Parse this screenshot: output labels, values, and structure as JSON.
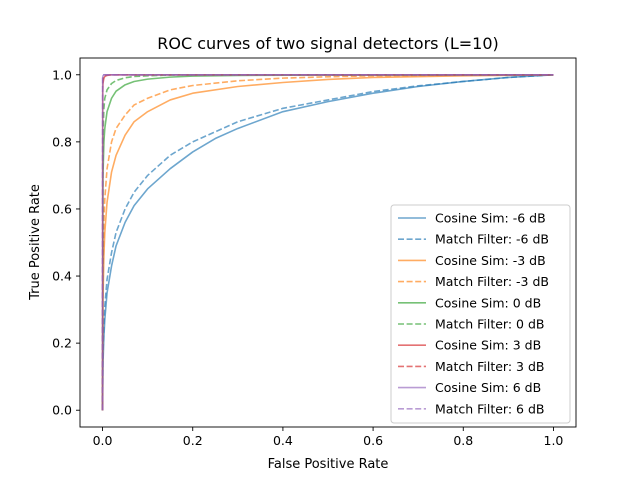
{
  "chart_data": {
    "type": "line",
    "title": "ROC curves of two signal detectors (L=10)",
    "xlabel": "False Positive Rate",
    "ylabel": "True Positive Rate",
    "xlim": [
      -0.05,
      1.05
    ],
    "ylim": [
      -0.05,
      1.05
    ],
    "x_ticks": [
      0.0,
      0.2,
      0.4,
      0.6,
      0.8,
      1.0
    ],
    "x_tick_labels": [
      "0.0",
      "0.2",
      "0.4",
      "0.6",
      "0.8",
      "1.0"
    ],
    "y_ticks": [
      0.0,
      0.2,
      0.4,
      0.6,
      0.8,
      1.0
    ],
    "y_tick_labels": [
      "0.0",
      "0.2",
      "0.4",
      "0.6",
      "0.8",
      "1.0"
    ],
    "grid": false,
    "legend_position": "lower-right",
    "series": [
      {
        "name": "Cosine Sim: -6 dB",
        "color": "#1f77b4",
        "dash": "solid",
        "x": [
          0,
          0.001,
          0.003,
          0.005,
          0.01,
          0.02,
          0.03,
          0.05,
          0.07,
          0.1,
          0.15,
          0.2,
          0.25,
          0.3,
          0.4,
          0.5,
          0.6,
          0.7,
          0.8,
          0.9,
          1.0
        ],
        "y": [
          0,
          0.14,
          0.22,
          0.27,
          0.35,
          0.43,
          0.49,
          0.56,
          0.61,
          0.66,
          0.72,
          0.77,
          0.81,
          0.84,
          0.89,
          0.92,
          0.945,
          0.965,
          0.98,
          0.992,
          1.0
        ]
      },
      {
        "name": "Match Filter: -6 dB",
        "color": "#1f77b4",
        "dash": "dashed",
        "x": [
          0,
          0.001,
          0.003,
          0.005,
          0.01,
          0.02,
          0.03,
          0.05,
          0.07,
          0.1,
          0.15,
          0.2,
          0.25,
          0.3,
          0.4,
          0.5,
          0.6,
          0.7,
          0.8,
          0.9,
          1.0
        ],
        "y": [
          0,
          0.17,
          0.26,
          0.31,
          0.39,
          0.47,
          0.53,
          0.6,
          0.65,
          0.7,
          0.76,
          0.8,
          0.83,
          0.86,
          0.9,
          0.925,
          0.95,
          0.967,
          0.98,
          0.992,
          1.0
        ]
      },
      {
        "name": "Cosine Sim: -3 dB",
        "color": "#ff7f0e",
        "dash": "solid",
        "x": [
          0,
          0.001,
          0.003,
          0.005,
          0.01,
          0.02,
          0.03,
          0.05,
          0.07,
          0.1,
          0.15,
          0.2,
          0.3,
          0.4,
          0.5,
          0.6,
          0.8,
          1.0
        ],
        "y": [
          0,
          0.33,
          0.46,
          0.53,
          0.62,
          0.71,
          0.76,
          0.82,
          0.86,
          0.89,
          0.925,
          0.945,
          0.965,
          0.977,
          0.986,
          0.992,
          0.997,
          1.0
        ]
      },
      {
        "name": "Match Filter: -3 dB",
        "color": "#ff7f0e",
        "dash": "dashed",
        "x": [
          0,
          0.001,
          0.003,
          0.005,
          0.01,
          0.02,
          0.03,
          0.05,
          0.07,
          0.1,
          0.15,
          0.2,
          0.3,
          0.4,
          0.5,
          0.6,
          0.8,
          1.0
        ],
        "y": [
          0,
          0.42,
          0.56,
          0.63,
          0.72,
          0.8,
          0.84,
          0.88,
          0.91,
          0.93,
          0.955,
          0.968,
          0.982,
          0.99,
          0.994,
          0.997,
          0.999,
          1.0
        ]
      },
      {
        "name": "Cosine Sim: 0 dB",
        "color": "#2ca02c",
        "dash": "solid",
        "x": [
          0,
          0.001,
          0.003,
          0.005,
          0.01,
          0.02,
          0.03,
          0.05,
          0.07,
          0.1,
          0.15,
          0.2,
          0.3,
          0.5,
          1.0
        ],
        "y": [
          0,
          0.7,
          0.8,
          0.84,
          0.89,
          0.93,
          0.951,
          0.97,
          0.98,
          0.987,
          0.993,
          0.996,
          0.998,
          0.999,
          1.0
        ]
      },
      {
        "name": "Match Filter: 0 dB",
        "color": "#2ca02c",
        "dash": "dashed",
        "x": [
          0,
          0.001,
          0.003,
          0.005,
          0.01,
          0.02,
          0.03,
          0.05,
          0.07,
          0.1,
          0.15,
          0.2,
          0.3,
          1.0
        ],
        "y": [
          0,
          0.82,
          0.9,
          0.93,
          0.955,
          0.974,
          0.983,
          0.991,
          0.995,
          0.997,
          0.999,
          1.0,
          1.0,
          1.0
        ]
      },
      {
        "name": "Cosine Sim: 3 dB",
        "color": "#d62728",
        "dash": "solid",
        "x": [
          0,
          0.0005,
          0.001,
          0.003,
          0.005,
          0.01,
          0.02,
          1.0
        ],
        "y": [
          0,
          0.95,
          0.975,
          0.99,
          0.995,
          0.998,
          1.0,
          1.0
        ]
      },
      {
        "name": "Match Filter: 3 dB",
        "color": "#d62728",
        "dash": "dashed",
        "x": [
          0,
          0.0005,
          0.001,
          0.003,
          0.005,
          0.01,
          0.02,
          1.0
        ],
        "y": [
          0,
          0.97,
          0.985,
          0.995,
          0.998,
          0.999,
          1.0,
          1.0
        ]
      },
      {
        "name": "Cosine Sim: 6 dB",
        "color": "#9467bd",
        "dash": "solid",
        "x": [
          0,
          0.0003,
          0.001,
          0.003,
          1.0
        ],
        "y": [
          0,
          0.99,
          0.997,
          1.0,
          1.0
        ]
      },
      {
        "name": "Match Filter: 6 dB",
        "color": "#9467bd",
        "dash": "dashed",
        "x": [
          0,
          0.0003,
          0.001,
          0.003,
          1.0
        ],
        "y": [
          0,
          0.995,
          0.999,
          1.0,
          1.0
        ]
      }
    ]
  }
}
